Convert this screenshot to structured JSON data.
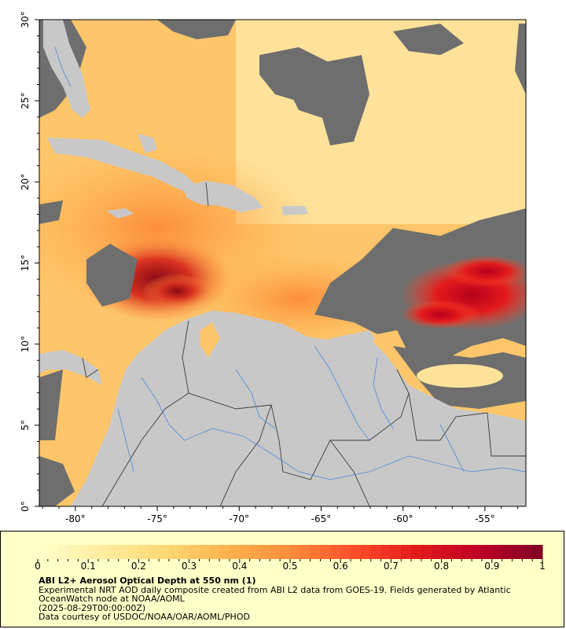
{
  "map": {
    "lon_ticks": [
      "-80°",
      "-75°",
      "-70°",
      "-65°",
      "-60°",
      "-55°"
    ],
    "lat_ticks": [
      "0°",
      "5°",
      "10°",
      "15°",
      "20°",
      "25°",
      "30°"
    ],
    "lon_range": [
      -82.2,
      -52.5
    ],
    "lat_range": [
      0,
      30
    ],
    "colors": {
      "no_data": "#6e6e6e",
      "land": "#c8c8c8",
      "rivers": "#5b8fd6",
      "borders": "#3c3c3c"
    }
  },
  "legend": {
    "ticks": [
      "0",
      "0.1",
      "0.2",
      "0.3",
      "0.4",
      "0.5",
      "0.6",
      "0.7",
      "0.8",
      "0.9",
      "1"
    ],
    "range": [
      0,
      1
    ],
    "colormap": [
      "#ffffcc",
      "#ffeda0",
      "#fed976",
      "#feb24c",
      "#fd8d3c",
      "#fc4e2a",
      "#e31a1c",
      "#bd0026",
      "#800026"
    ],
    "title": "ABI L2+ Aerosol Optical Depth at 550 nm (1)",
    "description": "Experimental NRT AOD daily composite created from ABI L2 data from GOES-19. Fields generated by Atlantic OceanWatch node at NOAA/AOML",
    "date": "(2025-08-29T00:00:00Z)",
    "credit": "Data courtesy of USDOC/NOAA/OAR/AOML/PHOD"
  }
}
